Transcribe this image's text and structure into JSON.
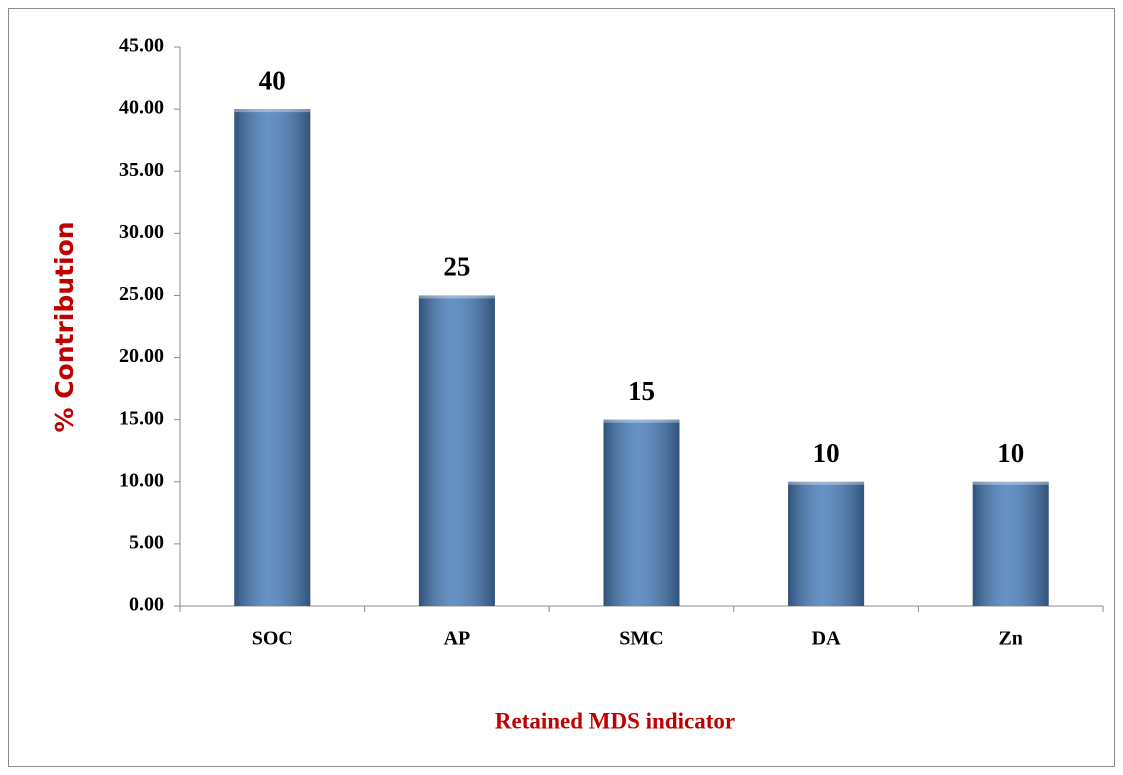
{
  "chart_data": {
    "type": "bar",
    "y_axis_label": "% Contribution",
    "x_axis_label": "Retained MDS indicator",
    "categories": [
      "SOC",
      "AP",
      "SMC",
      "DA",
      "Zn"
    ],
    "values": [
      40,
      25,
      15,
      10,
      10
    ],
    "color": "#4a7ebb",
    "ylim": [
      0,
      45
    ],
    "yticks": [
      {
        "value": 0,
        "label": "0.00"
      },
      {
        "value": 5,
        "label": "5.00"
      },
      {
        "value": 10,
        "label": "10.00"
      },
      {
        "value": 15,
        "label": "15.00"
      },
      {
        "value": 20,
        "label": "20.00"
      },
      {
        "value": 25,
        "label": "25.00"
      },
      {
        "value": 30,
        "label": "30.00"
      },
      {
        "value": 35,
        "label": "35.00"
      },
      {
        "value": 40,
        "label": "40.00"
      },
      {
        "value": 45,
        "label": "45.00"
      }
    ],
    "grid": false
  }
}
